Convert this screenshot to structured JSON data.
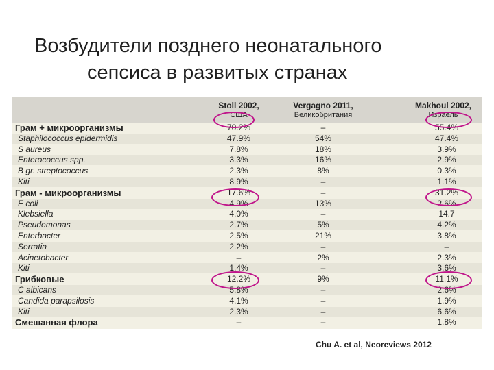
{
  "slide": {
    "title_line1": "Возбудители позднего неонатального",
    "title_line2": "сепсиса в развитых странах",
    "citation": "Chu A. et al, Neoreviews 2012"
  },
  "table": {
    "columns": [
      {
        "study": "Stoll 2002,",
        "country": "США"
      },
      {
        "study": "Vergagno 2011,",
        "country": "Великобритания"
      },
      {
        "study": "Makhoul 2002,",
        "country": "Израель"
      }
    ],
    "rows": [
      {
        "name": "Грам + микроорганизмы",
        "group": true,
        "v": [
          "70.2%",
          "–",
          "55.4%"
        ]
      },
      {
        "name": "Staphilococcus epidermidis",
        "group": false,
        "v": [
          "47.9%",
          "54%",
          "47.4%"
        ]
      },
      {
        "name": "S aureus",
        "group": false,
        "v": [
          "7.8%",
          "18%",
          "3.9%"
        ]
      },
      {
        "name": "Enterococcus spp.",
        "group": false,
        "v": [
          "3.3%",
          "16%",
          "2.9%"
        ]
      },
      {
        "name": "B gr. streptococcus",
        "group": false,
        "v": [
          "2.3%",
          "8%",
          "0.3%"
        ]
      },
      {
        "name": "Kiti",
        "group": false,
        "v": [
          "8.9%",
          "–",
          "1.1%"
        ]
      },
      {
        "name": "Грам - микроорганизмы",
        "group": true,
        "v": [
          "17.6%",
          "–",
          "31.2%"
        ]
      },
      {
        "name": "E coli",
        "group": false,
        "v": [
          "4.9%",
          "13%",
          "2.6%"
        ]
      },
      {
        "name": "Klebsiella",
        "group": false,
        "v": [
          "4.0%",
          "–",
          "14.7"
        ]
      },
      {
        "name": "Pseudomonas",
        "group": false,
        "v": [
          "2.7%",
          "5%",
          "4.2%"
        ]
      },
      {
        "name": "Enterbacter",
        "group": false,
        "v": [
          "2.5%",
          "21%",
          "3.8%"
        ]
      },
      {
        "name": "Serratia",
        "group": false,
        "v": [
          "2.2%",
          "–",
          "–"
        ]
      },
      {
        "name": "Acinetobacter",
        "group": false,
        "v": [
          "–",
          "2%",
          "2.3%"
        ]
      },
      {
        "name": "Kiti",
        "group": false,
        "v": [
          "1.4%",
          "–",
          "3.6%"
        ]
      },
      {
        "name": "Грибковые",
        "group": true,
        "v": [
          "12.2%",
          "9%",
          "11.1%"
        ]
      },
      {
        "name": "C albicans",
        "group": false,
        "v": [
          "5.8%",
          "–",
          "2.6%"
        ]
      },
      {
        "name": "Candida parapsilosis",
        "group": false,
        "v": [
          "4.1%",
          "–",
          "1.9%"
        ]
      },
      {
        "name": "Kiti",
        "group": false,
        "v": [
          "2.3%",
          "–",
          "6.6%"
        ]
      },
      {
        "name": "Смешанная флора",
        "group": true,
        "v": [
          "–",
          "–",
          "1.8%"
        ]
      }
    ]
  }
}
